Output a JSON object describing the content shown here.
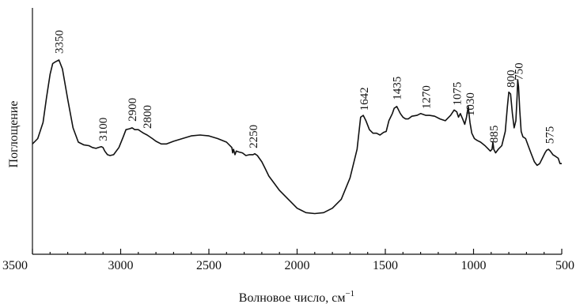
{
  "chart_data": {
    "type": "line",
    "title": "",
    "xlabel": "Волновое число, см",
    "xlabel_sup": "−1",
    "ylabel": "Поглощение",
    "xlim": [
      3500,
      500
    ],
    "xticks": [
      3500,
      3000,
      2500,
      2000,
      1500,
      1000,
      500
    ],
    "ylim": [
      0,
      1
    ],
    "grid": false,
    "legend": "none",
    "series": [
      {
        "x": [
          3500,
          3470,
          3440,
          3420,
          3400,
          3385,
          3370,
          3350,
          3330,
          3300,
          3270,
          3240,
          3210,
          3180,
          3160,
          3140,
          3125,
          3110,
          3100,
          3090,
          3075,
          3060,
          3040,
          3010,
          2985,
          2970,
          2950,
          2935,
          2920,
          2900,
          2885,
          2870,
          2850,
          2820,
          2800,
          2770,
          2740,
          2700,
          2650,
          2600,
          2550,
          2500,
          2450,
          2400,
          2370,
          2365,
          2360,
          2352,
          2345,
          2330,
          2310,
          2290,
          2270,
          2250,
          2240,
          2225,
          2200,
          2180,
          2160,
          2130,
          2100,
          2050,
          2000,
          1950,
          1900,
          1850,
          1800,
          1750,
          1700,
          1660,
          1640,
          1625,
          1610,
          1590,
          1570,
          1550,
          1530,
          1510,
          1495,
          1480,
          1460,
          1450,
          1435,
          1415,
          1400,
          1385,
          1370,
          1350,
          1320,
          1300,
          1270,
          1250,
          1220,
          1190,
          1160,
          1130,
          1110,
          1095,
          1085,
          1075,
          1062,
          1050,
          1040,
          1030,
          1020,
          1010,
          995,
          980,
          960,
          935,
          915,
          905,
          895,
          890,
          885,
          875,
          860,
          840,
          820,
          808,
          800,
          790,
          780,
          770,
          760,
          753,
          750,
          745,
          738,
          730,
          720,
          705,
          690,
          675,
          655,
          640,
          625,
          610,
          595,
          585,
          575,
          565,
          550,
          535,
          520,
          510,
          500
        ],
        "y": [
          0.41,
          0.44,
          0.53,
          0.67,
          0.8,
          0.86,
          0.87,
          0.88,
          0.83,
          0.66,
          0.5,
          0.42,
          0.405,
          0.4,
          0.39,
          0.385,
          0.39,
          0.395,
          0.39,
          0.37,
          0.35,
          0.345,
          0.35,
          0.39,
          0.45,
          0.49,
          0.495,
          0.5,
          0.49,
          0.49,
          0.48,
          0.47,
          0.46,
          0.44,
          0.425,
          0.41,
          0.41,
          0.425,
          0.44,
          0.455,
          0.46,
          0.455,
          0.44,
          0.42,
          0.39,
          0.36,
          0.38,
          0.35,
          0.37,
          0.365,
          0.36,
          0.345,
          0.35,
          0.35,
          0.355,
          0.345,
          0.31,
          0.27,
          0.23,
          0.19,
          0.15,
          0.1,
          0.05,
          0.025,
          0.02,
          0.025,
          0.05,
          0.1,
          0.22,
          0.38,
          0.56,
          0.57,
          0.54,
          0.49,
          0.47,
          0.47,
          0.46,
          0.475,
          0.48,
          0.54,
          0.58,
          0.61,
          0.62,
          0.58,
          0.56,
          0.55,
          0.55,
          0.565,
          0.57,
          0.58,
          0.57,
          0.57,
          0.565,
          0.55,
          0.54,
          0.57,
          0.6,
          0.59,
          0.56,
          0.58,
          0.55,
          0.52,
          0.56,
          0.62,
          0.53,
          0.47,
          0.44,
          0.43,
          0.42,
          0.4,
          0.38,
          0.37,
          0.38,
          0.42,
          0.38,
          0.36,
          0.38,
          0.4,
          0.48,
          0.62,
          0.7,
          0.69,
          0.58,
          0.5,
          0.54,
          0.68,
          0.77,
          0.73,
          0.6,
          0.48,
          0.45,
          0.44,
          0.4,
          0.36,
          0.31,
          0.29,
          0.3,
          0.33,
          0.36,
          0.375,
          0.38,
          0.37,
          0.35,
          0.34,
          0.33,
          0.3,
          0.3
        ],
        "peak_labels": [
          {
            "text": "3350",
            "x": 3350
          },
          {
            "text": "3100",
            "x": 3100
          },
          {
            "text": "2900",
            "x": 2935
          },
          {
            "text": "2800",
            "x": 2850
          },
          {
            "text": "2250",
            "x": 2250
          },
          {
            "text": "1642",
            "x": 1620
          },
          {
            "text": "1435",
            "x": 1435
          },
          {
            "text": "1270",
            "x": 1270
          },
          {
            "text": "1075",
            "x": 1095
          },
          {
            "text": "1030",
            "x": 1020
          },
          {
            "text": "885",
            "x": 885
          },
          {
            "text": "800",
            "x": 790
          },
          {
            "text": "750",
            "x": 745
          },
          {
            "text": "575",
            "x": 570
          }
        ]
      }
    ]
  }
}
